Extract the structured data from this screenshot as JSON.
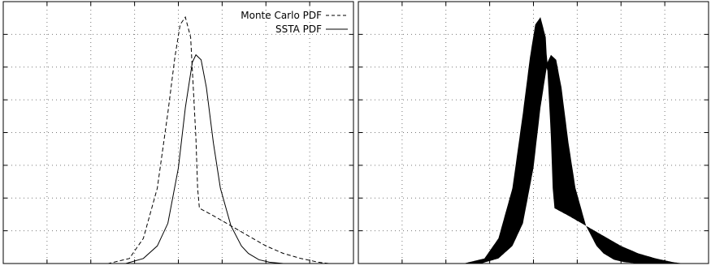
{
  "chart_data": [
    {
      "type": "line",
      "title": "",
      "xlabel": "",
      "ylabel": "",
      "xlim": [
        0,
        1
      ],
      "ylim": [
        0,
        1
      ],
      "grid": true,
      "legend_position": "top-right",
      "series": [
        {
          "name": "Monte Carlo PDF",
          "style": "dashed",
          "color": "#000000",
          "points": [
            [
              0.0,
              0.0
            ],
            [
              0.3,
              0.0
            ],
            [
              0.36,
              0.02
            ],
            [
              0.4,
              0.1
            ],
            [
              0.44,
              0.3
            ],
            [
              0.47,
              0.6
            ],
            [
              0.49,
              0.82
            ],
            [
              0.505,
              0.95
            ],
            [
              0.52,
              0.98
            ],
            [
              0.535,
              0.9
            ],
            [
              0.55,
              0.5
            ],
            [
              0.555,
              0.3
            ],
            [
              0.56,
              0.22
            ],
            [
              0.6,
              0.19
            ],
            [
              0.65,
              0.15
            ],
            [
              0.7,
              0.11
            ],
            [
              0.75,
              0.07
            ],
            [
              0.8,
              0.04
            ],
            [
              0.85,
              0.02
            ],
            [
              0.9,
              0.005
            ],
            [
              0.93,
              0.0
            ],
            [
              1.0,
              0.0
            ]
          ]
        },
        {
          "name": "SSTA PDF",
          "style": "solid",
          "color": "#000000",
          "points": [
            [
              0.0,
              0.0
            ],
            [
              0.35,
              0.0
            ],
            [
              0.4,
              0.02
            ],
            [
              0.44,
              0.07
            ],
            [
              0.47,
              0.16
            ],
            [
              0.5,
              0.38
            ],
            [
              0.52,
              0.62
            ],
            [
              0.54,
              0.8
            ],
            [
              0.55,
              0.83
            ],
            [
              0.565,
              0.81
            ],
            [
              0.58,
              0.7
            ],
            [
              0.6,
              0.48
            ],
            [
              0.62,
              0.3
            ],
            [
              0.65,
              0.15
            ],
            [
              0.68,
              0.07
            ],
            [
              0.7,
              0.04
            ],
            [
              0.73,
              0.015
            ],
            [
              0.76,
              0.005
            ],
            [
              0.8,
              0.0
            ],
            [
              1.0,
              0.0
            ]
          ]
        }
      ]
    },
    {
      "type": "area",
      "title": "",
      "xlabel": "",
      "ylabel": "",
      "xlim": [
        0,
        1
      ],
      "ylim": [
        0,
        1
      ],
      "grid": true,
      "fill_color": "#000000",
      "series": [
        {
          "name": "",
          "points": [
            [
              0.0,
              0.0
            ],
            [
              0.3,
              0.0
            ],
            [
              0.36,
              0.02
            ],
            [
              0.4,
              0.1
            ],
            [
              0.44,
              0.3
            ],
            [
              0.47,
              0.6
            ],
            [
              0.49,
              0.82
            ],
            [
              0.505,
              0.95
            ],
            [
              0.52,
              0.98
            ],
            [
              0.535,
              0.9
            ],
            [
              0.55,
              0.5
            ],
            [
              0.555,
              0.3
            ],
            [
              0.56,
              0.22
            ],
            [
              0.6,
              0.19
            ],
            [
              0.65,
              0.15
            ],
            [
              0.7,
              0.11
            ],
            [
              0.75,
              0.07
            ],
            [
              0.8,
              0.04
            ],
            [
              0.85,
              0.02
            ],
            [
              0.9,
              0.005
            ],
            [
              0.93,
              0.0
            ],
            [
              1.0,
              0.0
            ]
          ]
        },
        {
          "name": "",
          "points": [
            [
              0.0,
              0.0
            ],
            [
              0.35,
              0.0
            ],
            [
              0.4,
              0.02
            ],
            [
              0.44,
              0.07
            ],
            [
              0.47,
              0.16
            ],
            [
              0.5,
              0.38
            ],
            [
              0.52,
              0.62
            ],
            [
              0.54,
              0.8
            ],
            [
              0.55,
              0.83
            ],
            [
              0.565,
              0.81
            ],
            [
              0.58,
              0.7
            ],
            [
              0.6,
              0.48
            ],
            [
              0.62,
              0.3
            ],
            [
              0.65,
              0.15
            ],
            [
              0.68,
              0.07
            ],
            [
              0.7,
              0.04
            ],
            [
              0.73,
              0.015
            ],
            [
              0.76,
              0.005
            ],
            [
              0.8,
              0.0
            ],
            [
              1.0,
              0.0
            ]
          ]
        }
      ]
    }
  ]
}
